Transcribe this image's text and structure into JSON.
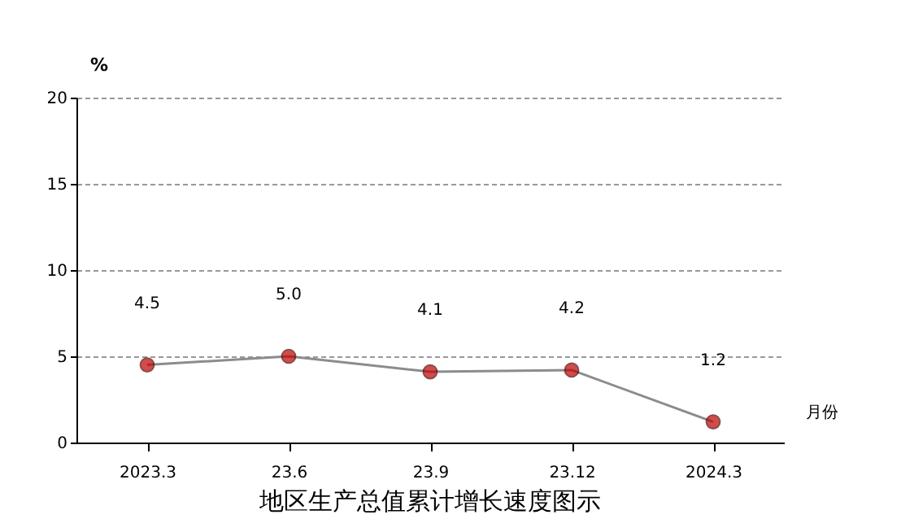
{
  "chart_data": {
    "type": "line",
    "title": "地区生产总值累计增长速度图示",
    "xlabel": "月份",
    "ylabel": "%",
    "categories": [
      "2023.3",
      "23.6",
      "23.9",
      "23.12",
      "2024.3"
    ],
    "series": [
      {
        "color": "#c00000",
        "values": [
          4.5,
          5.0,
          4.1,
          4.2,
          1.2
        ],
        "value_labels": [
          "4.5",
          "5.0",
          "4.1",
          "4.2",
          "1.2"
        ]
      }
    ],
    "ylim": [
      0,
      20
    ],
    "yticks": [
      0,
      5,
      10,
      15,
      20
    ],
    "grid": "y",
    "marker": "circle",
    "line_style": "solid"
  }
}
